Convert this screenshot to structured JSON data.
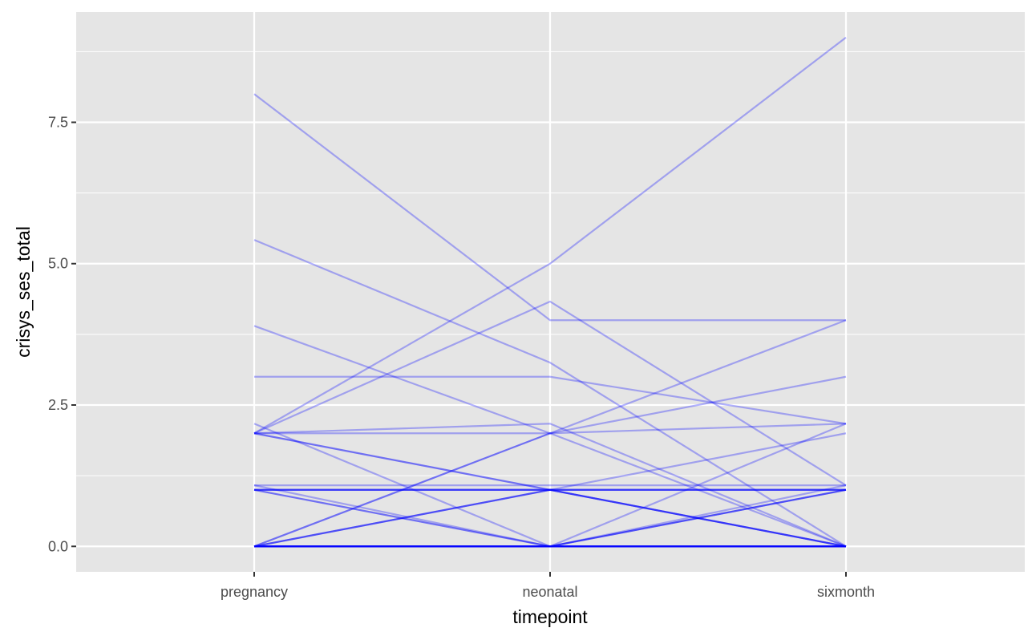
{
  "chart_data": {
    "type": "line",
    "title": "",
    "xlabel": "timepoint",
    "ylabel": "crisys_ses_total",
    "categories": [
      "pregnancy",
      "neonatal",
      "sixmonth"
    ],
    "ylim": [
      -0.45,
      9.45
    ],
    "y_ticks": [
      0.0,
      2.5,
      5.0,
      7.5
    ],
    "y_tick_labels": [
      "0.0",
      "2.5",
      "5.0",
      "7.5"
    ],
    "grid": true,
    "legend": "none",
    "line_color": "#0000FF",
    "line_alpha": 0.3,
    "panel_background": "#E5E5E5",
    "series": [
      {
        "values": [
          8,
          4,
          4
        ]
      },
      {
        "values": [
          5.42,
          3.25,
          0
        ]
      },
      {
        "values": [
          3.9,
          2,
          0
        ]
      },
      {
        "values": [
          3,
          3,
          2.17
        ]
      },
      {
        "values": [
          2.17,
          0,
          0
        ]
      },
      {
        "values": [
          2,
          5,
          9
        ]
      },
      {
        "values": [
          2,
          4.33,
          1.08
        ]
      },
      {
        "values": [
          2,
          2.17,
          0
        ]
      },
      {
        "values": [
          2,
          2,
          4
        ]
      },
      {
        "values": [
          2,
          1,
          1
        ]
      },
      {
        "values": [
          2,
          1,
          0
        ]
      },
      {
        "values": [
          1.08,
          1.08,
          1.08
        ]
      },
      {
        "values": [
          1.08,
          0,
          0
        ]
      },
      {
        "values": [
          1,
          1,
          1
        ]
      },
      {
        "values": [
          1,
          1,
          1
        ]
      },
      {
        "values": [
          1,
          1,
          1
        ]
      },
      {
        "values": [
          1,
          1,
          0
        ]
      },
      {
        "values": [
          1,
          0,
          0
        ]
      },
      {
        "values": [
          1,
          0,
          1
        ]
      },
      {
        "values": [
          0,
          2,
          3
        ]
      },
      {
        "values": [
          0,
          2,
          2.17
        ]
      },
      {
        "values": [
          0,
          1,
          2
        ]
      },
      {
        "values": [
          0,
          1,
          0
        ]
      },
      {
        "values": [
          0,
          1,
          0
        ]
      },
      {
        "values": [
          0,
          0,
          2.17
        ]
      },
      {
        "values": [
          0,
          0,
          1.08
        ]
      },
      {
        "values": [
          0,
          0,
          1
        ]
      },
      {
        "values": [
          0,
          0,
          1
        ]
      },
      {
        "values": [
          0,
          0,
          0
        ]
      },
      {
        "values": [
          0,
          0,
          0
        ]
      },
      {
        "values": [
          0,
          0,
          0
        ]
      },
      {
        "values": [
          0,
          0,
          0
        ]
      },
      {
        "values": [
          0,
          0,
          0
        ]
      },
      {
        "values": [
          0,
          0,
          0
        ]
      },
      {
        "values": [
          0,
          0,
          0
        ]
      }
    ]
  }
}
